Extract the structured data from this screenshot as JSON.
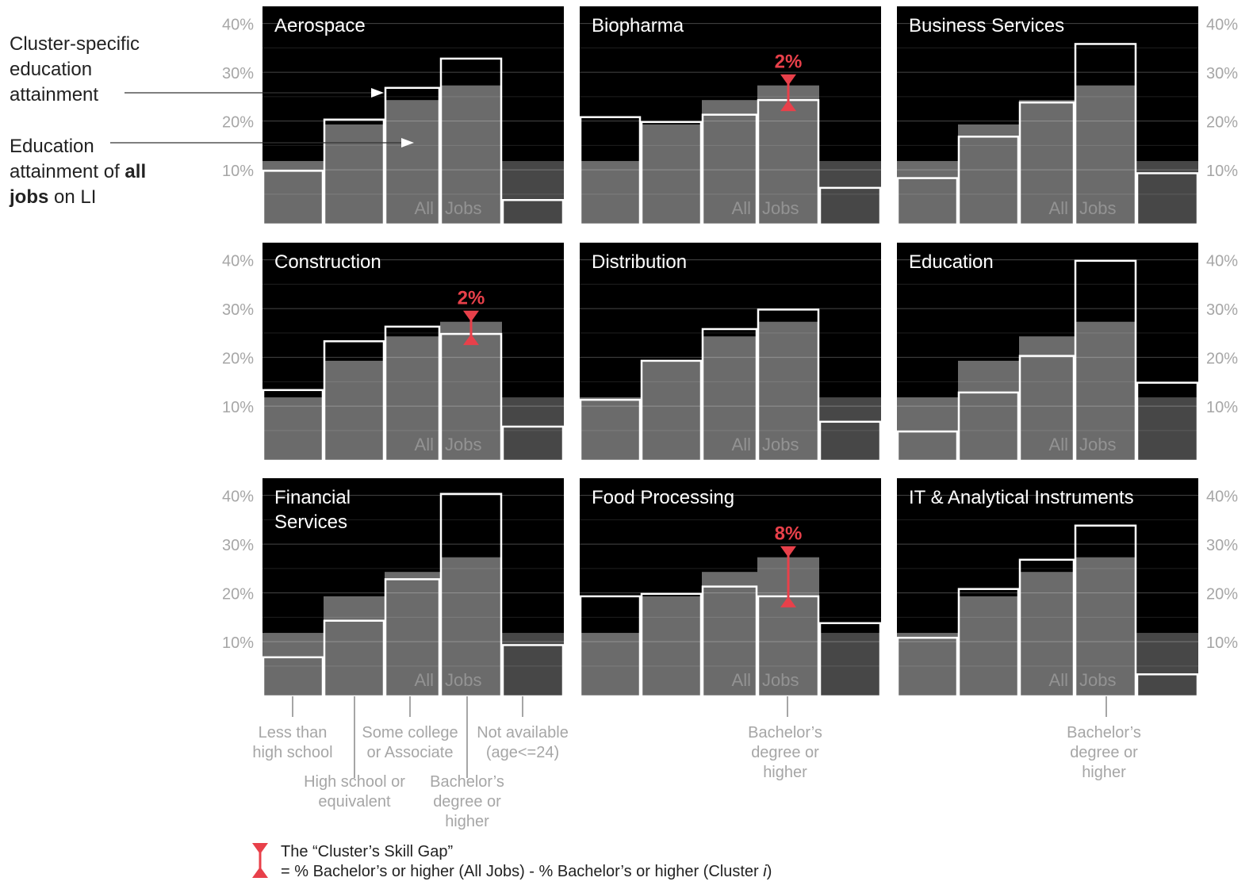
{
  "chart_data": {
    "type": "bar",
    "layout": "small-multiples 3x3",
    "categories": [
      "Less than high school",
      "High school or equivalent",
      "Some college or Associate",
      "Bachelor’s degree or higher",
      "Not available (age<=24)"
    ],
    "category_labels": [
      {
        "lines": [
          "Less than",
          "high school"
        ]
      },
      {
        "lines": [
          "High school or",
          "equivalent"
        ]
      },
      {
        "lines": [
          "Some college",
          "or Associate"
        ]
      },
      {
        "lines": [
          "Bachelor’s",
          "degree or",
          "higher"
        ]
      },
      {
        "lines": [
          "Not available",
          "(age<=24)"
        ]
      }
    ],
    "bachelor_label": {
      "lines": [
        "Bachelor’s",
        "degree or",
        "higher"
      ]
    },
    "y_ticks": [
      "10%",
      "20%",
      "30%",
      "40%"
    ],
    "y_tick_values": [
      10,
      20,
      30,
      40
    ],
    "ylim": [
      0,
      45
    ],
    "all_jobs_label": [
      "All",
      "Jobs"
    ],
    "all_jobs": [
      13,
      20.5,
      25.5,
      28.5,
      13
    ],
    "panels": [
      {
        "title": [
          "Aerospace"
        ],
        "values": [
          11,
          21.5,
          28,
          34,
          5
        ]
      },
      {
        "title": [
          "Biopharma"
        ],
        "values": [
          22,
          21,
          22.5,
          25.5,
          7.5
        ],
        "gap_label": "2%"
      },
      {
        "title": [
          "Business Services"
        ],
        "values": [
          9.5,
          18,
          25,
          37,
          10.5
        ]
      },
      {
        "title": [
          "Construction"
        ],
        "values": [
          14.5,
          24.5,
          27.5,
          26,
          7
        ],
        "gap_label": "2%"
      },
      {
        "title": [
          "Distribution"
        ],
        "values": [
          12.5,
          20.5,
          27,
          31,
          8
        ]
      },
      {
        "title": [
          "Education"
        ],
        "values": [
          6,
          14,
          21.5,
          41,
          16
        ]
      },
      {
        "title": [
          "Financial",
          "Services"
        ],
        "values": [
          8,
          15.5,
          24,
          41.5,
          10.5
        ]
      },
      {
        "title": [
          "Food Processing"
        ],
        "values": [
          20.5,
          21,
          22.5,
          20.5,
          15
        ],
        "gap_label": "8%"
      },
      {
        "title": [
          "IT & Analytical Instruments"
        ],
        "values": [
          12,
          22,
          28,
          35,
          4.5
        ]
      }
    ],
    "annotations": {
      "cluster_specific": [
        "Cluster-specific",
        "education",
        "attainment"
      ],
      "all_jobs": [
        "Education",
        "attainment of |all|",
        "|jobs| on LI"
      ]
    },
    "legend": {
      "line1": "The “Cluster’s Skill Gap”",
      "line2_prefix": "= % Bachelor’s or higher (All Jobs) - % Bachelor’s or higher (Cluster ",
      "line2_italic": "i",
      "line2_suffix": ")"
    },
    "colors": {
      "panel_bg": "#000000",
      "all_jobs_bar": "#6b6b6b",
      "all_jobs_bar_na": "#474747",
      "cluster_outline": "#ffffff",
      "gap_marker": "#e8404a",
      "axis_text": "#a6a6a6",
      "annotation_text": "#222222"
    }
  }
}
